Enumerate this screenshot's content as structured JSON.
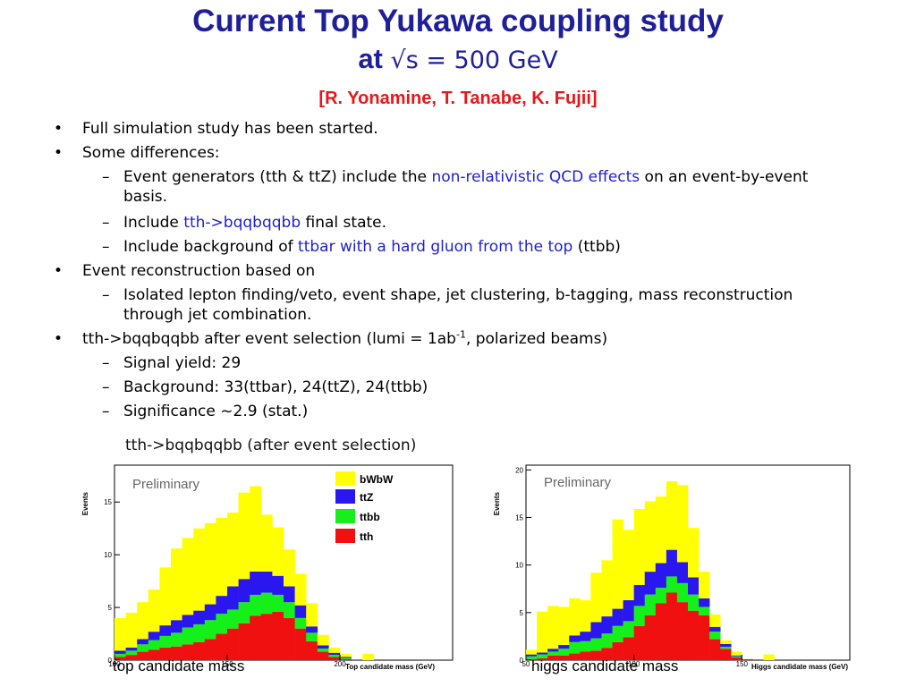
{
  "title": {
    "line1": "Current Top Yukawa coupling study",
    "line2_prefix": "at ",
    "line2_rest": "√s = 500 GeV",
    "authors": "[R. Yonamine, T. Tanabe, K. Fujii]"
  },
  "bullets": {
    "b1": "Full simulation study has been started.",
    "b2": "Some differences:",
    "b2_1_a": "Event generators (tth & ttZ) include the ",
    "b2_1_hl": "non-relativistic QCD effects",
    "b2_1_b": " on an event-by-event",
    "b2_1_c": "basis.",
    "b2_2_a": "Include ",
    "b2_2_hl": "tth->bqqbqqbb",
    "b2_2_b": " final state.",
    "b2_3_a": "Include background of ",
    "b2_3_hl": "ttbar with a hard gluon from the top",
    "b2_3_b": " (ttbb)",
    "b3": "Event reconstruction based on",
    "b3_1_a": "Isolated lepton finding/veto, event shape, jet clustering, b-tagging, mass reconstruction",
    "b3_1_b": "through jet combination.",
    "b4_a": "tth->bqqbqqbb after event selection (lumi = 1ab",
    "b4_sup": "-1",
    "b4_b": ", polarized beams)",
    "b4_1": "Signal yield: 29",
    "b4_2": "Background: 33(ttbar), 24(ttZ), 24(ttbb)",
    "b4_3": "Significance ~2.9 (stat.)"
  },
  "charts_header": "tth->bqqbqqbb (after event selection)",
  "colors": {
    "bWbW": "#FFFF00",
    "ttZ": "#2A17F0",
    "ttbb": "#16F01A",
    "tth": "#F01010",
    "title": "#1F1F99",
    "authors": "#E8161B",
    "highlight": "#1F1FD0"
  },
  "chart_data": [
    {
      "type": "bar",
      "stacked": true,
      "title": "top candidate mass",
      "xlabel": "Top candidate mass (GeV)",
      "ylabel": "Events",
      "annotation": "Preliminary",
      "legend": [
        "bWbW",
        "ttZ",
        "ttbb",
        "tth"
      ],
      "legend_position": "top-right",
      "xlim": [
        100,
        250
      ],
      "ylim": [
        0,
        18.5
      ],
      "xticks": [
        100,
        150,
        200
      ],
      "yticks": [
        0,
        5,
        10,
        15
      ],
      "bin_edges": [
        100,
        105,
        110,
        115,
        120,
        125,
        130,
        135,
        140,
        145,
        150,
        155,
        160,
        165,
        170,
        175,
        180,
        185,
        190,
        195,
        200,
        205,
        210,
        215,
        220
      ],
      "series": [
        {
          "name": "tth",
          "values": [
            0.3,
            0.5,
            0.8,
            1.0,
            1.2,
            1.3,
            1.5,
            1.7,
            2.0,
            2.5,
            3.0,
            3.5,
            4.2,
            4.4,
            4.6,
            4.0,
            3.0,
            1.8,
            0.8,
            0.3,
            0.1,
            0,
            0,
            0
          ]
        },
        {
          "name": "ttbb",
          "values": [
            0.3,
            0.4,
            0.7,
            0.9,
            1.1,
            1.3,
            1.6,
            1.7,
            1.8,
            1.9,
            1.8,
            2.0,
            2.0,
            2.0,
            1.6,
            1.5,
            1.0,
            0.8,
            0.3,
            0.2,
            0.1,
            0,
            0,
            0
          ]
        },
        {
          "name": "ttZ",
          "values": [
            0.3,
            0.3,
            0.5,
            0.8,
            1.0,
            1.2,
            1.2,
            1.3,
            1.5,
            1.7,
            2.2,
            2.2,
            2.2,
            2.0,
            1.8,
            1.5,
            1.2,
            0.6,
            0.3,
            0.2,
            0.1,
            0,
            0,
            0
          ]
        },
        {
          "name": "bWbW",
          "values": [
            3.1,
            3.3,
            3.5,
            4.0,
            5.5,
            6.8,
            7.3,
            7.8,
            7.7,
            7.4,
            7.0,
            8.2,
            8.1,
            5.4,
            4.6,
            3.5,
            3.0,
            2.2,
            1.0,
            0.5,
            0.3,
            0,
            0.6,
            0
          ]
        }
      ]
    },
    {
      "type": "bar",
      "stacked": true,
      "title": "higgs candidate mass",
      "xlabel": "Higgs candidate mass (GeV)",
      "ylabel": "Events",
      "annotation": "Preliminary",
      "xlim": [
        50,
        200
      ],
      "ylim": [
        0,
        20.5
      ],
      "xticks": [
        50,
        100,
        150
      ],
      "yticks": [
        0,
        5,
        10,
        15,
        20
      ],
      "bin_edges": [
        50,
        55,
        60,
        65,
        70,
        75,
        80,
        85,
        90,
        95,
        100,
        105,
        110,
        115,
        120,
        125,
        130,
        135,
        140,
        145,
        150,
        155,
        160,
        165,
        170
      ],
      "series": [
        {
          "name": "tth",
          "values": [
            0.1,
            0.2,
            0.5,
            0.5,
            0.7,
            0.9,
            1.0,
            1.3,
            1.9,
            2.4,
            3.6,
            4.7,
            6.0,
            7.1,
            6.1,
            5.2,
            4.7,
            2.2,
            1.2,
            0.3,
            0.1,
            0,
            0,
            0
          ]
        },
        {
          "name": "ttbb",
          "values": [
            0.3,
            0.4,
            0.4,
            0.7,
            1.2,
            1.1,
            1.3,
            1.5,
            1.7,
            1.7,
            2.1,
            2.2,
            1.6,
            1.7,
            2.0,
            1.7,
            0.9,
            0.8,
            0.2,
            0.1,
            0,
            0,
            0,
            0
          ]
        },
        {
          "name": "ttZ",
          "values": [
            0.2,
            0.2,
            0.3,
            0.4,
            0.7,
            1.0,
            1.7,
            1.8,
            1.8,
            2.2,
            2.2,
            2.4,
            2.6,
            2.8,
            2.2,
            1.8,
            0.9,
            0.5,
            0.3,
            0.1,
            0,
            0,
            0,
            0
          ]
        },
        {
          "name": "bWbW",
          "values": [
            0.5,
            4.3,
            4.5,
            4.0,
            3.9,
            3.3,
            5.2,
            5.9,
            9.4,
            7.4,
            8.0,
            7.4,
            7.0,
            7.2,
            8.1,
            5.2,
            2.8,
            1.3,
            0.4,
            0.4,
            0,
            0,
            0.6,
            0
          ]
        }
      ]
    }
  ]
}
